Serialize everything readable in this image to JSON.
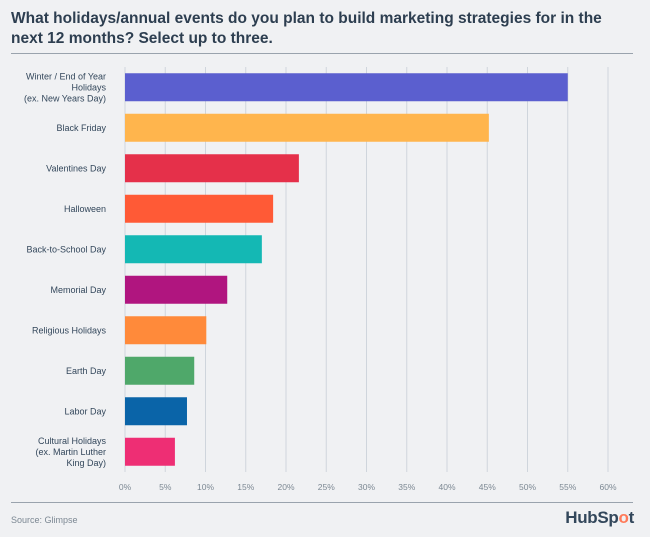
{
  "chart_data": {
    "type": "bar",
    "orientation": "horizontal",
    "title": "What holidays/annual events do you plan to build marketing strategies for in the next 12 months? Select up to three.",
    "categories": [
      [
        "Winter / End of Year",
        "Holidays",
        "(ex. New Years Day)"
      ],
      [
        "Black Friday"
      ],
      [
        "Valentines Day"
      ],
      [
        "Halloween"
      ],
      [
        "Back-to-School Day"
      ],
      [
        "Memorial Day"
      ],
      [
        "Religious Holidays"
      ],
      [
        "Earth Day"
      ],
      [
        "Labor Day"
      ],
      [
        "Cultural Holidays",
        "(ex. Martin Luther",
        "King Day)"
      ]
    ],
    "values": [
      55,
      45.2,
      21.6,
      18.4,
      17.0,
      12.7,
      10.1,
      8.6,
      7.7,
      6.2
    ],
    "colors": [
      "#5b5fcf",
      "#ffb54d",
      "#e5304a",
      "#ff5a36",
      "#14b8b4",
      "#b0157f",
      "#ff8a3a",
      "#4fa86a",
      "#0a64a8",
      "#ee2e74"
    ],
    "xlim": [
      0,
      60
    ],
    "xticks": [
      "0%",
      "5%",
      "10%",
      "15%",
      "20%",
      "25%",
      "30%",
      "35%",
      "40%",
      "45%",
      "50%",
      "55%",
      "60%"
    ],
    "grid": true,
    "legend": "none"
  },
  "footer": {
    "source": "Source: Glimpse",
    "logo": "HubSpot"
  }
}
